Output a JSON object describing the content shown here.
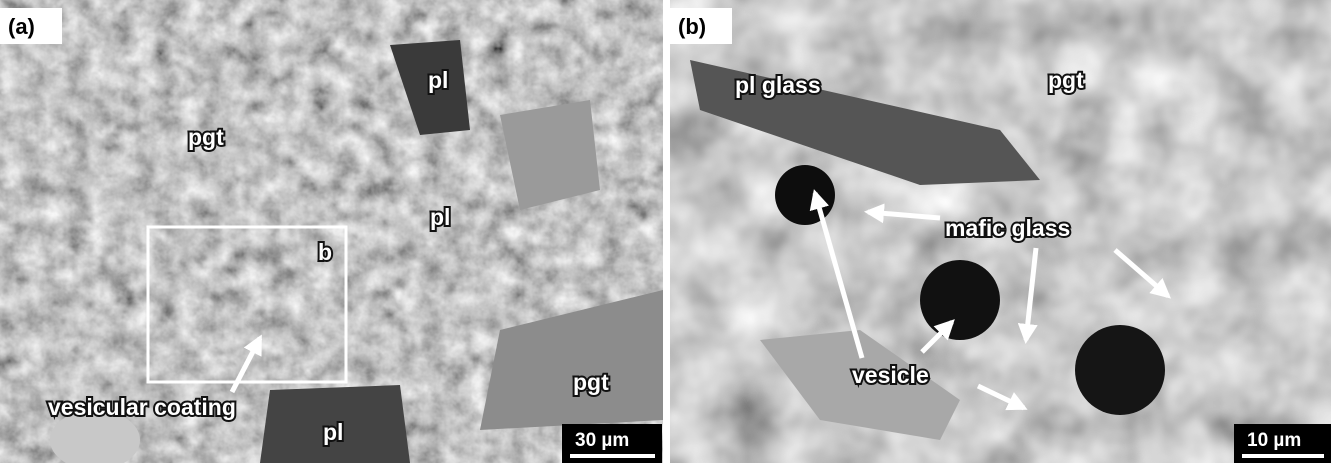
{
  "panels": [
    {
      "label": "(a)",
      "annotations": [
        "pl",
        "pgt",
        "pl",
        "b",
        "vesicular coating",
        "pgt",
        "pl"
      ],
      "scale_bar": "30 µm"
    },
    {
      "label": "(b)",
      "annotations": [
        "pl glass",
        "pgt",
        "mafic glass",
        "vesicle"
      ],
      "scale_bar": "10 µm"
    }
  ]
}
